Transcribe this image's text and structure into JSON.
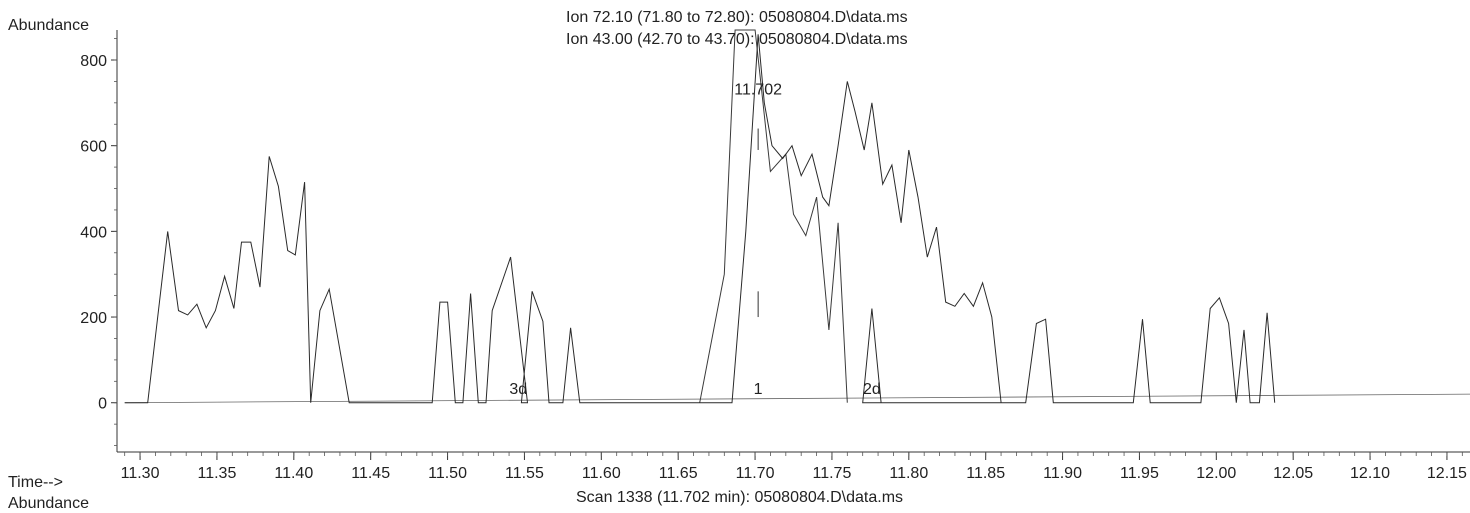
{
  "y_axis_title": "Abundance",
  "x_axis_prefix": "Time-->",
  "bottom_label": "Abundance",
  "legend_lines": [
    "Ion  72.10 (71.80 to 72.80): 05080804.D\\data.ms",
    "Ion  43.00 (42.70 to 43.70): 05080804.D\\data.ms"
  ],
  "footer": "Scan 1338 (11.702 min): 05080804.D\\data.ms",
  "chart_data": {
    "type": "line",
    "title": "",
    "xlabel": "Time-->",
    "ylabel": "Abundance",
    "xlim": [
      11.285,
      12.165
    ],
    "ylim": [
      -115,
      870
    ],
    "x_ticks": [
      "11.30",
      "11.35",
      "11.40",
      "11.45",
      "11.50",
      "11.55",
      "11.60",
      "11.65",
      "11.70",
      "11.75",
      "11.80",
      "11.85",
      "11.90",
      "11.95",
      "12.00",
      "12.05",
      "12.10",
      "12.15"
    ],
    "y_ticks": [
      "800",
      "600",
      "400",
      "200",
      "0"
    ],
    "series": [
      {
        "name": "Ion 72.10",
        "points": [
          [
            11.664,
            0
          ],
          [
            11.68,
            300
          ],
          [
            11.687,
            870
          ],
          [
            11.7,
            870
          ],
          [
            11.71,
            540
          ],
          [
            11.72,
            580
          ],
          [
            11.725,
            440
          ],
          [
            11.733,
            390
          ],
          [
            11.74,
            480
          ],
          [
            11.748,
            170
          ],
          [
            11.754,
            420
          ],
          [
            11.76,
            0
          ]
        ]
      },
      {
        "name": "Ion 43.00",
        "points": [
          [
            11.29,
            0
          ],
          [
            11.305,
            0
          ],
          [
            11.318,
            400
          ],
          [
            11.325,
            215
          ],
          [
            11.331,
            205
          ],
          [
            11.337,
            230
          ],
          [
            11.343,
            175
          ],
          [
            11.349,
            215
          ],
          [
            11.355,
            295
          ],
          [
            11.361,
            220
          ],
          [
            11.366,
            375
          ],
          [
            11.372,
            375
          ],
          [
            11.378,
            270
          ],
          [
            11.384,
            575
          ],
          [
            11.39,
            505
          ],
          [
            11.396,
            355
          ],
          [
            11.401,
            345
          ],
          [
            11.407,
            515
          ],
          [
            11.411,
            0
          ],
          [
            11.417,
            215
          ],
          [
            11.423,
            265
          ],
          [
            11.436,
            0
          ],
          [
            11.49,
            0
          ],
          [
            11.495,
            235
          ],
          [
            11.5,
            235
          ],
          [
            11.505,
            0
          ],
          [
            11.51,
            0
          ],
          [
            11.515,
            255
          ],
          [
            11.52,
            0
          ],
          [
            11.525,
            0
          ],
          [
            11.529,
            215
          ],
          [
            11.541,
            340
          ],
          [
            11.552,
            0
          ],
          [
            11.548,
            0
          ],
          [
            11.555,
            260
          ],
          [
            11.562,
            190
          ],
          [
            11.566,
            0
          ],
          [
            11.575,
            0
          ],
          [
            11.58,
            175
          ],
          [
            11.586,
            0
          ],
          [
            11.685,
            0
          ],
          [
            11.694,
            400
          ],
          [
            11.702,
            860
          ],
          [
            11.706,
            700
          ],
          [
            11.711,
            600
          ],
          [
            11.718,
            570
          ],
          [
            11.724,
            600
          ],
          [
            11.73,
            530
          ],
          [
            11.737,
            580
          ],
          [
            11.744,
            480
          ],
          [
            11.748,
            460
          ],
          [
            11.754,
            600
          ],
          [
            11.76,
            750
          ],
          [
            11.765,
            680
          ],
          [
            11.771,
            590
          ],
          [
            11.776,
            700
          ],
          [
            11.783,
            510
          ],
          [
            11.789,
            555
          ],
          [
            11.795,
            420
          ],
          [
            11.8,
            590
          ],
          [
            11.806,
            480
          ],
          [
            11.812,
            340
          ],
          [
            11.818,
            410
          ],
          [
            11.824,
            235
          ],
          [
            11.83,
            225
          ],
          [
            11.836,
            255
          ],
          [
            11.842,
            225
          ],
          [
            11.848,
            280
          ],
          [
            11.854,
            200
          ],
          [
            11.86,
            0
          ],
          [
            11.77,
            0
          ],
          [
            11.776,
            220
          ],
          [
            11.782,
            0
          ],
          [
            11.876,
            0
          ],
          [
            11.883,
            185
          ],
          [
            11.889,
            195
          ],
          [
            11.894,
            0
          ],
          [
            11.946,
            0
          ],
          [
            11.952,
            195
          ],
          [
            11.957,
            0
          ],
          [
            11.99,
            0
          ],
          [
            11.996,
            220
          ],
          [
            12.002,
            245
          ],
          [
            12.008,
            185
          ],
          [
            12.013,
            0
          ],
          [
            12.018,
            170
          ],
          [
            12.022,
            0
          ],
          [
            12.028,
            0
          ],
          [
            12.033,
            210
          ],
          [
            12.038,
            0
          ]
        ]
      }
    ],
    "peak_labels": [
      {
        "text": "11.702",
        "x": 11.702,
        "y": 720
      },
      {
        "text": "3d",
        "x": 11.546,
        "y": 20
      },
      {
        "text": "1",
        "x": 11.702,
        "y": 20
      },
      {
        "text": "2d",
        "x": 11.776,
        "y": 20
      }
    ],
    "baseline_ticks": [
      {
        "x": 11.702,
        "y0": 200,
        "y1": 260
      },
      {
        "x": 11.702,
        "y0": 590,
        "y1": 640
      }
    ]
  }
}
